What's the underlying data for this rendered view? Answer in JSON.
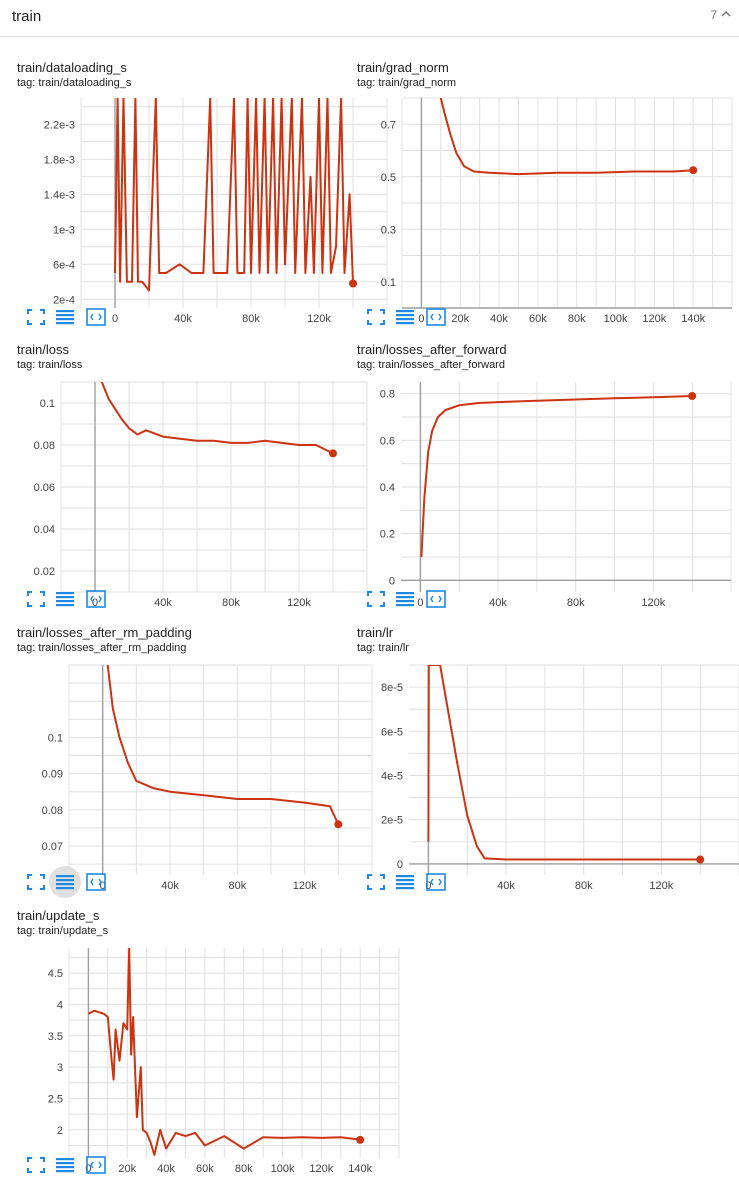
{
  "group": {
    "title": "train",
    "count": "7"
  },
  "colors": {
    "series": "#cc3311",
    "grid": "#e0e0e0",
    "axis": "#9e9e9e",
    "button": "#1e88e5"
  },
  "icons": [
    "expand-icon",
    "data-table-icon",
    "fit-domain-icon",
    "chevron-up-icon"
  ],
  "chart_data": [
    {
      "id": "dataloading",
      "title": "train/dataloading_s",
      "tag": "tag: train/dataloading_s",
      "type": "line",
      "xlim": [
        -20000,
        160000
      ],
      "ylim": [
        0.0001,
        0.0025
      ],
      "xticks": [
        0,
        40000,
        80000,
        120000
      ],
      "xtick_labels": [
        "0",
        "40k",
        "80k",
        "120k"
      ],
      "yticks": [
        0.0002,
        0.0006,
        0.001,
        0.0014,
        0.0018,
        0.0022
      ],
      "ytick_labels": [
        "2e-4",
        "6e-4",
        "1e-3",
        "1.4e-3",
        "1.8e-3",
        "2.2e-3"
      ],
      "series": [
        {
          "points": [
            [
              0,
              0.0005
            ],
            [
              1500,
              0.0025
            ],
            [
              3000,
              0.0004
            ],
            [
              5000,
              0.0025
            ],
            [
              7000,
              0.0004
            ],
            [
              10000,
              0.0004
            ],
            [
              12000,
              0.0025
            ],
            [
              13500,
              0.0004
            ],
            [
              16000,
              0.0004
            ],
            [
              20000,
              0.0003
            ],
            [
              24000,
              0.0025
            ],
            [
              26000,
              0.0005
            ],
            [
              30000,
              0.0005
            ],
            [
              38000,
              0.0006
            ],
            [
              45000,
              0.0005
            ],
            [
              52000,
              0.0005
            ],
            [
              56000,
              0.0025
            ],
            [
              58000,
              0.0005
            ],
            [
              62000,
              0.0005
            ],
            [
              66000,
              0.0005
            ],
            [
              70000,
              0.0025
            ],
            [
              72000,
              0.0005
            ],
            [
              76000,
              0.0005
            ],
            [
              78000,
              0.0025
            ],
            [
              80000,
              0.0005
            ],
            [
              83000,
              0.0025
            ],
            [
              85000,
              0.0005
            ],
            [
              88000,
              0.0025
            ],
            [
              90000,
              0.0005
            ],
            [
              93000,
              0.0025
            ],
            [
              95000,
              0.0005
            ],
            [
              98000,
              0.0025
            ],
            [
              100000,
              0.0006
            ],
            [
              104000,
              0.0025
            ],
            [
              106000,
              0.0005
            ],
            [
              110000,
              0.0025
            ],
            [
              112000,
              0.0005
            ],
            [
              115000,
              0.0016
            ],
            [
              117000,
              0.0005
            ],
            [
              120000,
              0.0025
            ],
            [
              122000,
              0.0005
            ],
            [
              125000,
              0.0025
            ],
            [
              127000,
              0.0005
            ],
            [
              130000,
              0.0008
            ],
            [
              133000,
              0.0025
            ],
            [
              135000,
              0.0005
            ],
            [
              138000,
              0.0014
            ],
            [
              140000,
              0.00038
            ]
          ]
        }
      ]
    },
    {
      "id": "grad_norm",
      "title": "train/grad_norm",
      "tag": "tag: train/grad_norm",
      "type": "line",
      "xlim": [
        -10000,
        160000
      ],
      "ylim": [
        0,
        0.8
      ],
      "xticks": [
        0,
        20000,
        40000,
        60000,
        80000,
        100000,
        120000,
        140000
      ],
      "xtick_labels": [
        "0",
        "20k",
        "40k",
        "60k",
        "80k",
        "100k",
        "120k",
        "140k"
      ],
      "yticks": [
        0.1,
        0.3,
        0.5,
        0.7
      ],
      "ytick_labels": [
        "0.1",
        "0.3",
        "0.5",
        "0.7"
      ],
      "series": [
        {
          "points": [
            [
              10000,
              0.8
            ],
            [
              12000,
              0.74
            ],
            [
              15000,
              0.66
            ],
            [
              18000,
              0.59
            ],
            [
              22000,
              0.54
            ],
            [
              27000,
              0.52
            ],
            [
              35000,
              0.515
            ],
            [
              50000,
              0.51
            ],
            [
              70000,
              0.515
            ],
            [
              90000,
              0.515
            ],
            [
              110000,
              0.52
            ],
            [
              130000,
              0.52
            ],
            [
              140000,
              0.525
            ]
          ]
        }
      ]
    },
    {
      "id": "loss",
      "title": "train/loss",
      "tag": "tag: train/loss",
      "type": "line",
      "xlim": [
        -20000,
        160000
      ],
      "ylim": [
        0.01,
        0.11
      ],
      "xticks": [
        0,
        40000,
        80000,
        120000
      ],
      "xtick_labels": [
        "0",
        "40k",
        "80k",
        "120k"
      ],
      "yticks": [
        0.02,
        0.04,
        0.06,
        0.08,
        0.1
      ],
      "ytick_labels": [
        "0.02",
        "0.04",
        "0.06",
        "0.08",
        "0.1"
      ],
      "series": [
        {
          "points": [
            [
              4000,
              0.11
            ],
            [
              8000,
              0.102
            ],
            [
              12000,
              0.097
            ],
            [
              16000,
              0.092
            ],
            [
              20000,
              0.088
            ],
            [
              25000,
              0.085
            ],
            [
              30000,
              0.087
            ],
            [
              40000,
              0.084
            ],
            [
              50000,
              0.083
            ],
            [
              60000,
              0.082
            ],
            [
              70000,
              0.082
            ],
            [
              80000,
              0.081
            ],
            [
              90000,
              0.081
            ],
            [
              100000,
              0.082
            ],
            [
              110000,
              0.081
            ],
            [
              120000,
              0.08
            ],
            [
              130000,
              0.08
            ],
            [
              140000,
              0.076
            ]
          ]
        }
      ]
    },
    {
      "id": "losses_after_forward",
      "title": "train/losses_after_forward",
      "tag": "tag: train/losses_after_forward",
      "type": "line",
      "xlim": [
        -10000,
        160000
      ],
      "ylim": [
        -0.05,
        0.85
      ],
      "xticks": [
        0,
        40000,
        80000,
        120000
      ],
      "xtick_labels": [
        "0",
        "40k",
        "80k",
        "120k"
      ],
      "yticks": [
        0,
        0.2,
        0.4,
        0.6,
        0.8
      ],
      "ytick_labels": [
        "0",
        "0.2",
        "0.4",
        "0.6",
        "0.8"
      ],
      "series": [
        {
          "points": [
            [
              500,
              0.1
            ],
            [
              2000,
              0.35
            ],
            [
              4000,
              0.55
            ],
            [
              6000,
              0.64
            ],
            [
              9000,
              0.7
            ],
            [
              13000,
              0.73
            ],
            [
              20000,
              0.75
            ],
            [
              30000,
              0.76
            ],
            [
              45000,
              0.765
            ],
            [
              60000,
              0.77
            ],
            [
              80000,
              0.775
            ],
            [
              100000,
              0.78
            ],
            [
              120000,
              0.785
            ],
            [
              140000,
              0.79
            ]
          ]
        }
      ]
    },
    {
      "id": "losses_after_rm_padding",
      "title": "train/losses_after_rm_padding",
      "tag": "tag: train/losses_after_rm_padding",
      "type": "line",
      "xlim": [
        -20000,
        160000
      ],
      "ylim": [
        0.062,
        0.12
      ],
      "xticks": [
        0,
        40000,
        80000,
        120000
      ],
      "xtick_labels": [
        "0",
        "40k",
        "80k",
        "120k"
      ],
      "yticks": [
        0.07,
        0.08,
        0.09,
        0.1
      ],
      "ytick_labels": [
        "0.07",
        "0.08",
        "0.09",
        "0.1"
      ],
      "series": [
        {
          "points": [
            [
              3000,
              0.12
            ],
            [
              6000,
              0.108
            ],
            [
              10000,
              0.1
            ],
            [
              15000,
              0.093
            ],
            [
              20000,
              0.088
            ],
            [
              30000,
              0.086
            ],
            [
              40000,
              0.085
            ],
            [
              60000,
              0.084
            ],
            [
              80000,
              0.083
            ],
            [
              100000,
              0.083
            ],
            [
              120000,
              0.082
            ],
            [
              135000,
              0.081
            ],
            [
              140000,
              0.076
            ]
          ]
        }
      ]
    },
    {
      "id": "lr",
      "title": "train/lr",
      "tag": "tag: train/lr",
      "type": "line",
      "xlim": [
        -10000,
        160000
      ],
      "ylim": [
        -5e-06,
        9e-05
      ],
      "xticks": [
        0,
        40000,
        80000,
        120000
      ],
      "xtick_labels": [
        "0",
        "40k",
        "80k",
        "120k"
      ],
      "yticks": [
        0,
        2e-05,
        4e-05,
        6e-05,
        8e-05
      ],
      "ytick_labels": [
        "0",
        "2e-5",
        "4e-5",
        "6e-5",
        "8e-5"
      ],
      "series": [
        {
          "points": [
            [
              0,
              1e-05
            ],
            [
              200,
              9e-05
            ],
            [
              6000,
              9e-05
            ],
            [
              10000,
              7e-05
            ],
            [
              15000,
              4.5e-05
            ],
            [
              20000,
              2.2e-05
            ],
            [
              25000,
              8e-06
            ],
            [
              29000,
              2.5e-06
            ],
            [
              40000,
              2e-06
            ],
            [
              80000,
              2e-06
            ],
            [
              120000,
              2e-06
            ],
            [
              140000,
              2e-06
            ]
          ]
        }
      ]
    },
    {
      "id": "update",
      "title": "train/update_s",
      "tag": "tag: train/update_s",
      "type": "line",
      "xlim": [
        -10000,
        160000
      ],
      "ylim": [
        1.55,
        4.9
      ],
      "xticks": [
        0,
        20000,
        40000,
        60000,
        80000,
        100000,
        120000,
        140000
      ],
      "xtick_labels": [
        "0",
        "20k",
        "40k",
        "60k",
        "80k",
        "100k",
        "120k",
        "140k"
      ],
      "yticks": [
        2,
        2.5,
        3,
        3.5,
        4,
        4.5
      ],
      "ytick_labels": [
        "2",
        "2.5",
        "3",
        "3.5",
        "4",
        "4.5"
      ],
      "series": [
        {
          "points": [
            [
              0,
              3.85
            ],
            [
              3000,
              3.9
            ],
            [
              8000,
              3.85
            ],
            [
              10000,
              3.8
            ],
            [
              12000,
              3.1
            ],
            [
              13000,
              2.8
            ],
            [
              14000,
              3.6
            ],
            [
              16000,
              3.1
            ],
            [
              18000,
              3.7
            ],
            [
              20000,
              3.6
            ],
            [
              21000,
              4.9
            ],
            [
              22000,
              3.2
            ],
            [
              23000,
              3.8
            ],
            [
              25000,
              2.2
            ],
            [
              27000,
              3.0
            ],
            [
              28000,
              2.0
            ],
            [
              30000,
              1.95
            ],
            [
              32000,
              1.8
            ],
            [
              34000,
              1.6
            ],
            [
              37000,
              2.0
            ],
            [
              40000,
              1.7
            ],
            [
              45000,
              1.95
            ],
            [
              50000,
              1.9
            ],
            [
              55000,
              1.95
            ],
            [
              60000,
              1.75
            ],
            [
              70000,
              1.9
            ],
            [
              80000,
              1.7
            ],
            [
              90000,
              1.88
            ],
            [
              100000,
              1.87
            ],
            [
              110000,
              1.88
            ],
            [
              120000,
              1.87
            ],
            [
              130000,
              1.88
            ],
            [
              140000,
              1.84
            ]
          ]
        }
      ]
    }
  ]
}
